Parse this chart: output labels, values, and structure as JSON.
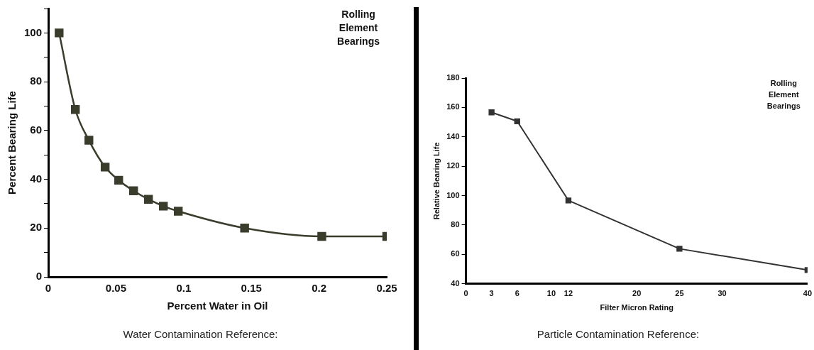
{
  "chart_data": [
    {
      "type": "line",
      "xlabel": "Percent Water in Oil",
      "ylabel": "Percent Bearing Life",
      "x": [
        0.008,
        0.02,
        0.03,
        0.042,
        0.052,
        0.063,
        0.074,
        0.085,
        0.096,
        0.145,
        0.202,
        0.25
      ],
      "series": [
        {
          "color": "#3a3c2c",
          "values": [
            100,
            68.6,
            56,
            45,
            39.6,
            35.3,
            31.8,
            29,
            26.9,
            20,
            16.6,
            16.6
          ]
        }
      ],
      "xlim": [
        0,
        0.25
      ],
      "xticks": [
        0,
        0.05,
        0.1,
        0.15,
        0.2,
        0.25
      ],
      "ylim": [
        0,
        110
      ],
      "yticks": [
        0,
        {
          "value": 10,
          "label": null
        },
        20,
        {
          "value": 30,
          "label": null
        },
        40,
        {
          "value": 50,
          "label": null
        },
        60,
        {
          "value": 70,
          "label": null
        },
        80,
        {
          "value": 90,
          "label": null
        },
        100,
        {
          "value": 110,
          "label": null
        }
      ],
      "marker": "square",
      "line_style": "solid",
      "grid": false,
      "legend": false,
      "annotations": [
        "Rolling Element Bearings",
        "Water Contamination Reference:"
      ]
    },
    {
      "type": "line",
      "xlabel": "Filter Micron Rating",
      "ylabel": "Relative Bearing Life",
      "x": [
        3,
        6,
        12,
        25,
        40
      ],
      "series": [
        {
          "color": "#333333",
          "values": [
            156.7,
            150.6,
            96.7,
            63.8,
            49.3
          ]
        }
      ],
      "xlim": [
        0,
        40
      ],
      "xticks": [
        0,
        3,
        6,
        10,
        12,
        20,
        25,
        30,
        40
      ],
      "ylim": [
        40,
        180
      ],
      "yticks": [
        40,
        60,
        80,
        100,
        120,
        140,
        160,
        180
      ],
      "marker": "square",
      "line_style": "solid",
      "grid": false,
      "legend": false,
      "annotations": [
        "Rolling Element Bearings",
        "Particle Contamination Reference:"
      ]
    }
  ]
}
